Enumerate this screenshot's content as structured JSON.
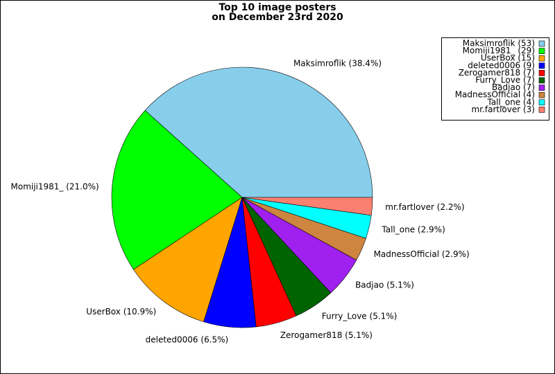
{
  "chart_data": {
    "type": "pie",
    "title": [
      "Top 10 image posters",
      "on December 23rd 2020"
    ],
    "values": [
      38.4,
      21.0,
      10.9,
      6.5,
      5.1,
      5.1,
      5.1,
      2.9,
      2.9,
      2.2
    ],
    "value_labels": [
      "Maksimroflik (38.4%)",
      "Momiji1981_ (21.0%)",
      "UserBox (10.9%)",
      "deleted0006 (6.5%)",
      "Zerogamer818 (5.1%)",
      "Furry_Love (5.1%)",
      "Badjao (5.1%)",
      "MadnessOfficial (2.9%)",
      "Tall_one (2.9%)",
      "mr.fartlover (2.2%)"
    ],
    "legend": [
      "Maksimroflik (53)",
      "Momiji1981_ (29)",
      "UserBox (15)",
      "deleted0006 (9)",
      "Zerogamer818 (7)",
      "Furry_Love (7)",
      "Badjao (7)",
      "MadnessOfficial (4)",
      "Tall_one (4)",
      "mr.fartlover (3)"
    ],
    "colors": [
      "#87ceeb",
      "#00ff00",
      "#ffa500",
      "#0000ff",
      "#ff0000",
      "#006400",
      "#a020f0",
      "#cd853f",
      "#00ffff",
      "#fa8072"
    ],
    "legend_position": "upper right"
  }
}
